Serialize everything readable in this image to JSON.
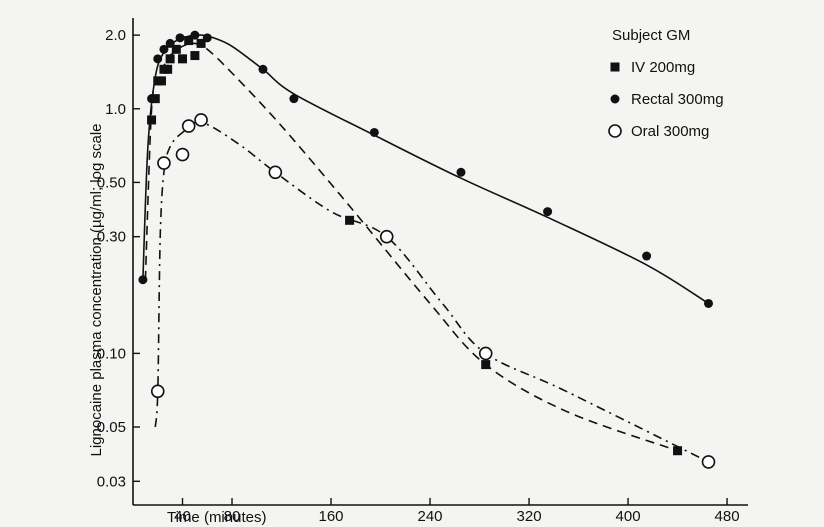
{
  "chart_data": {
    "type": "line",
    "title": "",
    "xlabel": "Time (minutes)",
    "ylabel": "Lignocaine plasma concentration (µg/ml; log scale",
    "x_ticks": [
      40,
      80,
      160,
      240,
      320,
      400,
      480
    ],
    "y_ticks": [
      0.03,
      0.05,
      0.1,
      0.3,
      0.5,
      1.0,
      2.0
    ],
    "y_tick_labels": [
      "0.03",
      "0.05",
      "0.10",
      "0.30",
      "0.50",
      "1.0",
      "2.0"
    ],
    "xlim": [
      0,
      505
    ],
    "ylim": [
      0.024,
      2.35
    ],
    "y_scale": "log",
    "legend": {
      "title": "Subject GM",
      "placement": "top-right"
    },
    "series": [
      {
        "name": "IV 200mg",
        "marker": "square",
        "line": "dashed",
        "x": [
          15,
          18,
          20,
          23,
          25,
          28,
          30,
          35,
          40,
          45,
          50,
          55,
          175,
          285,
          440
        ],
        "y": [
          0.9,
          1.1,
          1.3,
          1.3,
          1.45,
          1.45,
          1.6,
          1.75,
          1.6,
          1.9,
          1.65,
          1.85,
          0.35,
          0.09,
          0.04
        ],
        "curve_x": [
          10,
          15,
          20,
          25,
          30,
          40,
          50,
          60,
          80,
          120,
          175,
          240,
          285,
          350,
          440
        ],
        "curve_y": [
          0.2,
          1.0,
          1.3,
          1.5,
          1.65,
          1.8,
          1.85,
          1.75,
          1.4,
          0.85,
          0.4,
          0.16,
          0.09,
          0.058,
          0.04
        ]
      },
      {
        "name": "Rectal 300mg",
        "marker": "dot",
        "line": "solid",
        "x": [
          8,
          15,
          20,
          25,
          30,
          38,
          50,
          60,
          105,
          130,
          195,
          265,
          335,
          415,
          465
        ],
        "y": [
          0.2,
          1.1,
          1.6,
          1.75,
          1.85,
          1.95,
          2.0,
          1.95,
          1.45,
          1.1,
          0.8,
          0.55,
          0.38,
          0.25,
          0.16
        ],
        "curve_x": [
          8,
          12,
          18,
          25,
          35,
          45,
          55,
          65,
          80,
          105,
          130,
          195,
          265,
          335,
          415,
          465
        ],
        "curve_y": [
          0.2,
          0.7,
          1.35,
          1.7,
          1.9,
          1.98,
          2.0,
          1.95,
          1.8,
          1.45,
          1.15,
          0.78,
          0.52,
          0.36,
          0.23,
          0.16
        ]
      },
      {
        "name": "Oral 300mg",
        "marker": "circle",
        "line": "dash-dot",
        "x": [
          20,
          25,
          40,
          45,
          55,
          115,
          205,
          285,
          465
        ],
        "y": [
          0.07,
          0.6,
          0.65,
          0.85,
          0.9,
          0.55,
          0.3,
          0.1,
          0.036
        ],
        "curve_x": [
          18,
          20,
          22,
          25,
          30,
          40,
          55,
          85,
          115,
          160,
          205,
          250,
          285,
          350,
          465
        ],
        "curve_y": [
          0.05,
          0.07,
          0.3,
          0.55,
          0.7,
          0.8,
          0.88,
          0.72,
          0.55,
          0.38,
          0.3,
          0.16,
          0.1,
          0.07,
          0.036
        ]
      }
    ]
  }
}
